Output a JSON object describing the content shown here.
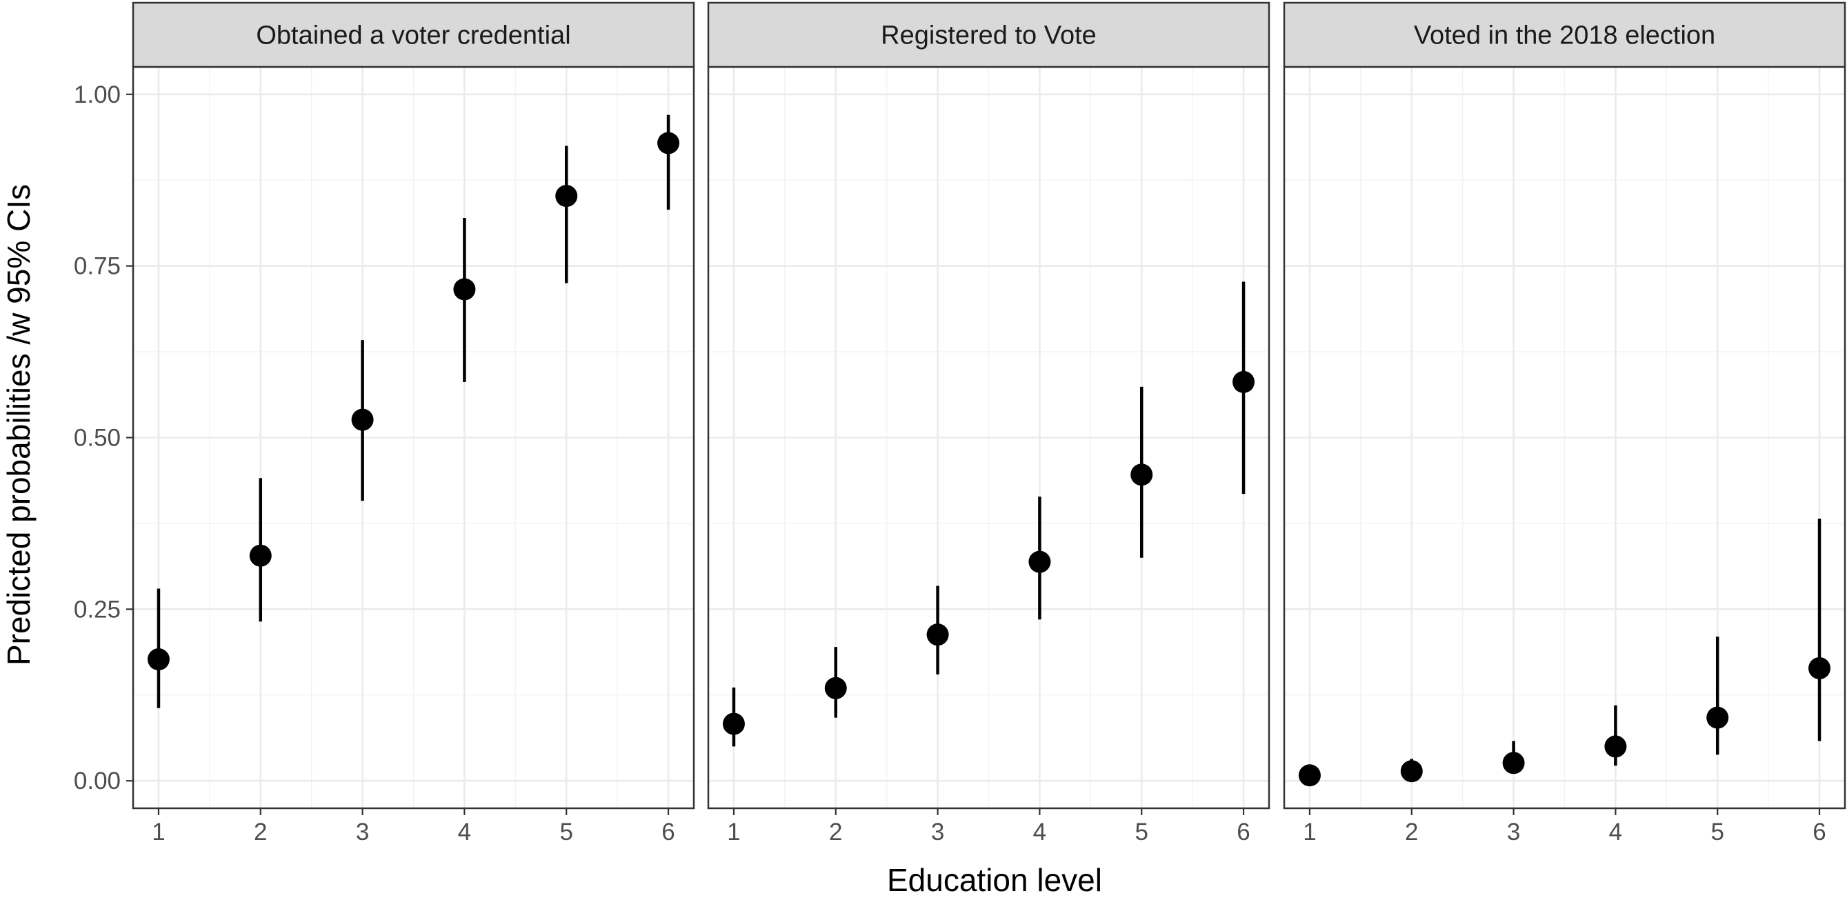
{
  "chart_data": {
    "type": "scatter",
    "subtype": "pointrange",
    "xlabel": "Education level",
    "ylabel": "Predicted probabilities /w 95% CIs",
    "x": [
      1,
      2,
      3,
      4,
      5,
      6
    ],
    "x_ticks": [
      "1",
      "2",
      "3",
      "4",
      "5",
      "6"
    ],
    "y_ticks": [
      "0.00",
      "0.25",
      "0.50",
      "0.75",
      "1.00"
    ],
    "ylim": [
      -0.04,
      1.04
    ],
    "xlim": [
      0.75,
      6.25
    ],
    "grid": true,
    "facets": [
      {
        "title": "Obtained a voter credential",
        "estimate": [
          0.177,
          0.328,
          0.526,
          0.716,
          0.852,
          0.929
        ],
        "lower": [
          0.106,
          0.232,
          0.408,
          0.581,
          0.725,
          0.832
        ],
        "upper": [
          0.28,
          0.441,
          0.642,
          0.82,
          0.925,
          0.97
        ]
      },
      {
        "title": "Registered to Vote",
        "estimate": [
          0.083,
          0.135,
          0.213,
          0.319,
          0.446,
          0.581
        ],
        "lower": [
          0.05,
          0.092,
          0.155,
          0.235,
          0.325,
          0.418
        ],
        "upper": [
          0.136,
          0.195,
          0.284,
          0.414,
          0.574,
          0.727
        ]
      },
      {
        "title": "Voted in the 2018 election",
        "estimate": [
          0.008,
          0.014,
          0.026,
          0.05,
          0.092,
          0.164
        ],
        "lower": [
          0.002,
          0.006,
          0.013,
          0.022,
          0.038,
          0.058
        ],
        "upper": [
          0.02,
          0.032,
          0.058,
          0.11,
          0.21,
          0.382
        ]
      }
    ]
  }
}
